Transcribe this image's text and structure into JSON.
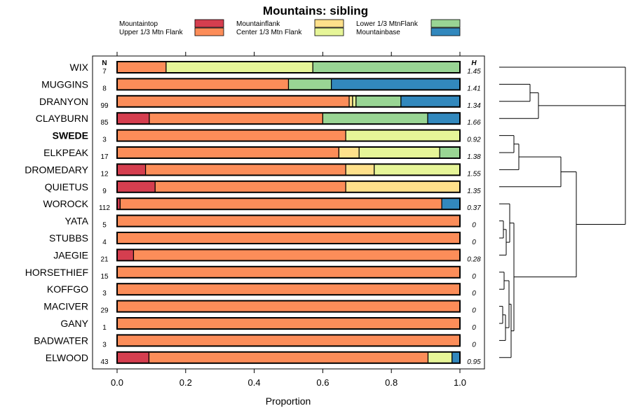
{
  "chart_data": {
    "type": "stacked-bar-horizontal",
    "title": "Mountains: sibling",
    "xlabel": "Proportion",
    "xlim": [
      0,
      1
    ],
    "xticks": [
      "0.0",
      "0.2",
      "0.4",
      "0.6",
      "0.8",
      "1.0"
    ],
    "n_header": "N",
    "h_header": "H",
    "categories_legend": [
      {
        "name": "Mountaintop",
        "color": "#d53e4f"
      },
      {
        "name": "Upper 1/3 Mtn Flank",
        "color": "#fc8d59"
      },
      {
        "name": "Mountainflank",
        "color": "#fee08b"
      },
      {
        "name": "Center 1/3 Mtn Flank",
        "color": "#e6f598"
      },
      {
        "name": "Lower 1/3 MtnFlank",
        "color": "#99d594"
      },
      {
        "name": "Mountainbase",
        "color": "#3288bd"
      }
    ],
    "rows": [
      {
        "label": "WIX",
        "bold": false,
        "n": "7",
        "h": "1.45",
        "values": [
          0,
          0.143,
          0,
          0.428,
          0.429,
          0
        ]
      },
      {
        "label": "MUGGINS",
        "bold": false,
        "n": "8",
        "h": "1.41",
        "values": [
          0,
          0.5,
          0,
          0,
          0.125,
          0.375
        ]
      },
      {
        "label": "DRANYON",
        "bold": false,
        "n": "99",
        "h": "1.34",
        "values": [
          0,
          0.677,
          0.01,
          0.01,
          0.131,
          0.172
        ]
      },
      {
        "label": "CLAYBURN",
        "bold": false,
        "n": "85",
        "h": "1.66",
        "values": [
          0.094,
          0.506,
          0,
          0,
          0.306,
          0.094
        ]
      },
      {
        "label": "SWEDE",
        "bold": true,
        "n": "3",
        "h": "0.92",
        "values": [
          0,
          0.667,
          0,
          0.333,
          0,
          0
        ]
      },
      {
        "label": "ELKPEAK",
        "bold": false,
        "n": "17",
        "h": "1.38",
        "values": [
          0,
          0.647,
          0.059,
          0.235,
          0.059,
          0
        ]
      },
      {
        "label": "DROMEDARY",
        "bold": false,
        "n": "12",
        "h": "1.55",
        "values": [
          0.083,
          0.584,
          0.083,
          0.25,
          0,
          0
        ]
      },
      {
        "label": "QUIETUS",
        "bold": false,
        "n": "9",
        "h": "1.35",
        "values": [
          0.111,
          0.556,
          0.333,
          0,
          0,
          0
        ]
      },
      {
        "label": "WOROCK",
        "bold": false,
        "n": "112",
        "h": "0.37",
        "values": [
          0.009,
          0.938,
          0,
          0,
          0,
          0.053
        ]
      },
      {
        "label": "YATA",
        "bold": false,
        "n": "5",
        "h": "0",
        "values": [
          0,
          1,
          0,
          0,
          0,
          0
        ]
      },
      {
        "label": "STUBBS",
        "bold": false,
        "n": "4",
        "h": "0",
        "values": [
          0,
          1,
          0,
          0,
          0,
          0
        ]
      },
      {
        "label": "JAEGIE",
        "bold": false,
        "n": "21",
        "h": "0.28",
        "values": [
          0.048,
          0.952,
          0,
          0,
          0,
          0
        ]
      },
      {
        "label": "HORSETHIEF",
        "bold": false,
        "n": "15",
        "h": "0",
        "values": [
          0,
          1,
          0,
          0,
          0,
          0
        ]
      },
      {
        "label": "KOFFGO",
        "bold": false,
        "n": "3",
        "h": "0",
        "values": [
          0,
          1,
          0,
          0,
          0,
          0
        ]
      },
      {
        "label": "MACIVER",
        "bold": false,
        "n": "29",
        "h": "0",
        "values": [
          0,
          1,
          0,
          0,
          0,
          0
        ]
      },
      {
        "label": "GANY",
        "bold": false,
        "n": "1",
        "h": "0",
        "values": [
          0,
          1,
          0,
          0,
          0,
          0
        ]
      },
      {
        "label": "BADWATER",
        "bold": false,
        "n": "3",
        "h": "0",
        "values": [
          0,
          1,
          0,
          0,
          0,
          0
        ]
      },
      {
        "label": "ELWOOD",
        "bold": false,
        "n": "43",
        "h": "0.95",
        "values": [
          0.093,
          0.814,
          0,
          0.07,
          0,
          0.023
        ]
      }
    ]
  }
}
